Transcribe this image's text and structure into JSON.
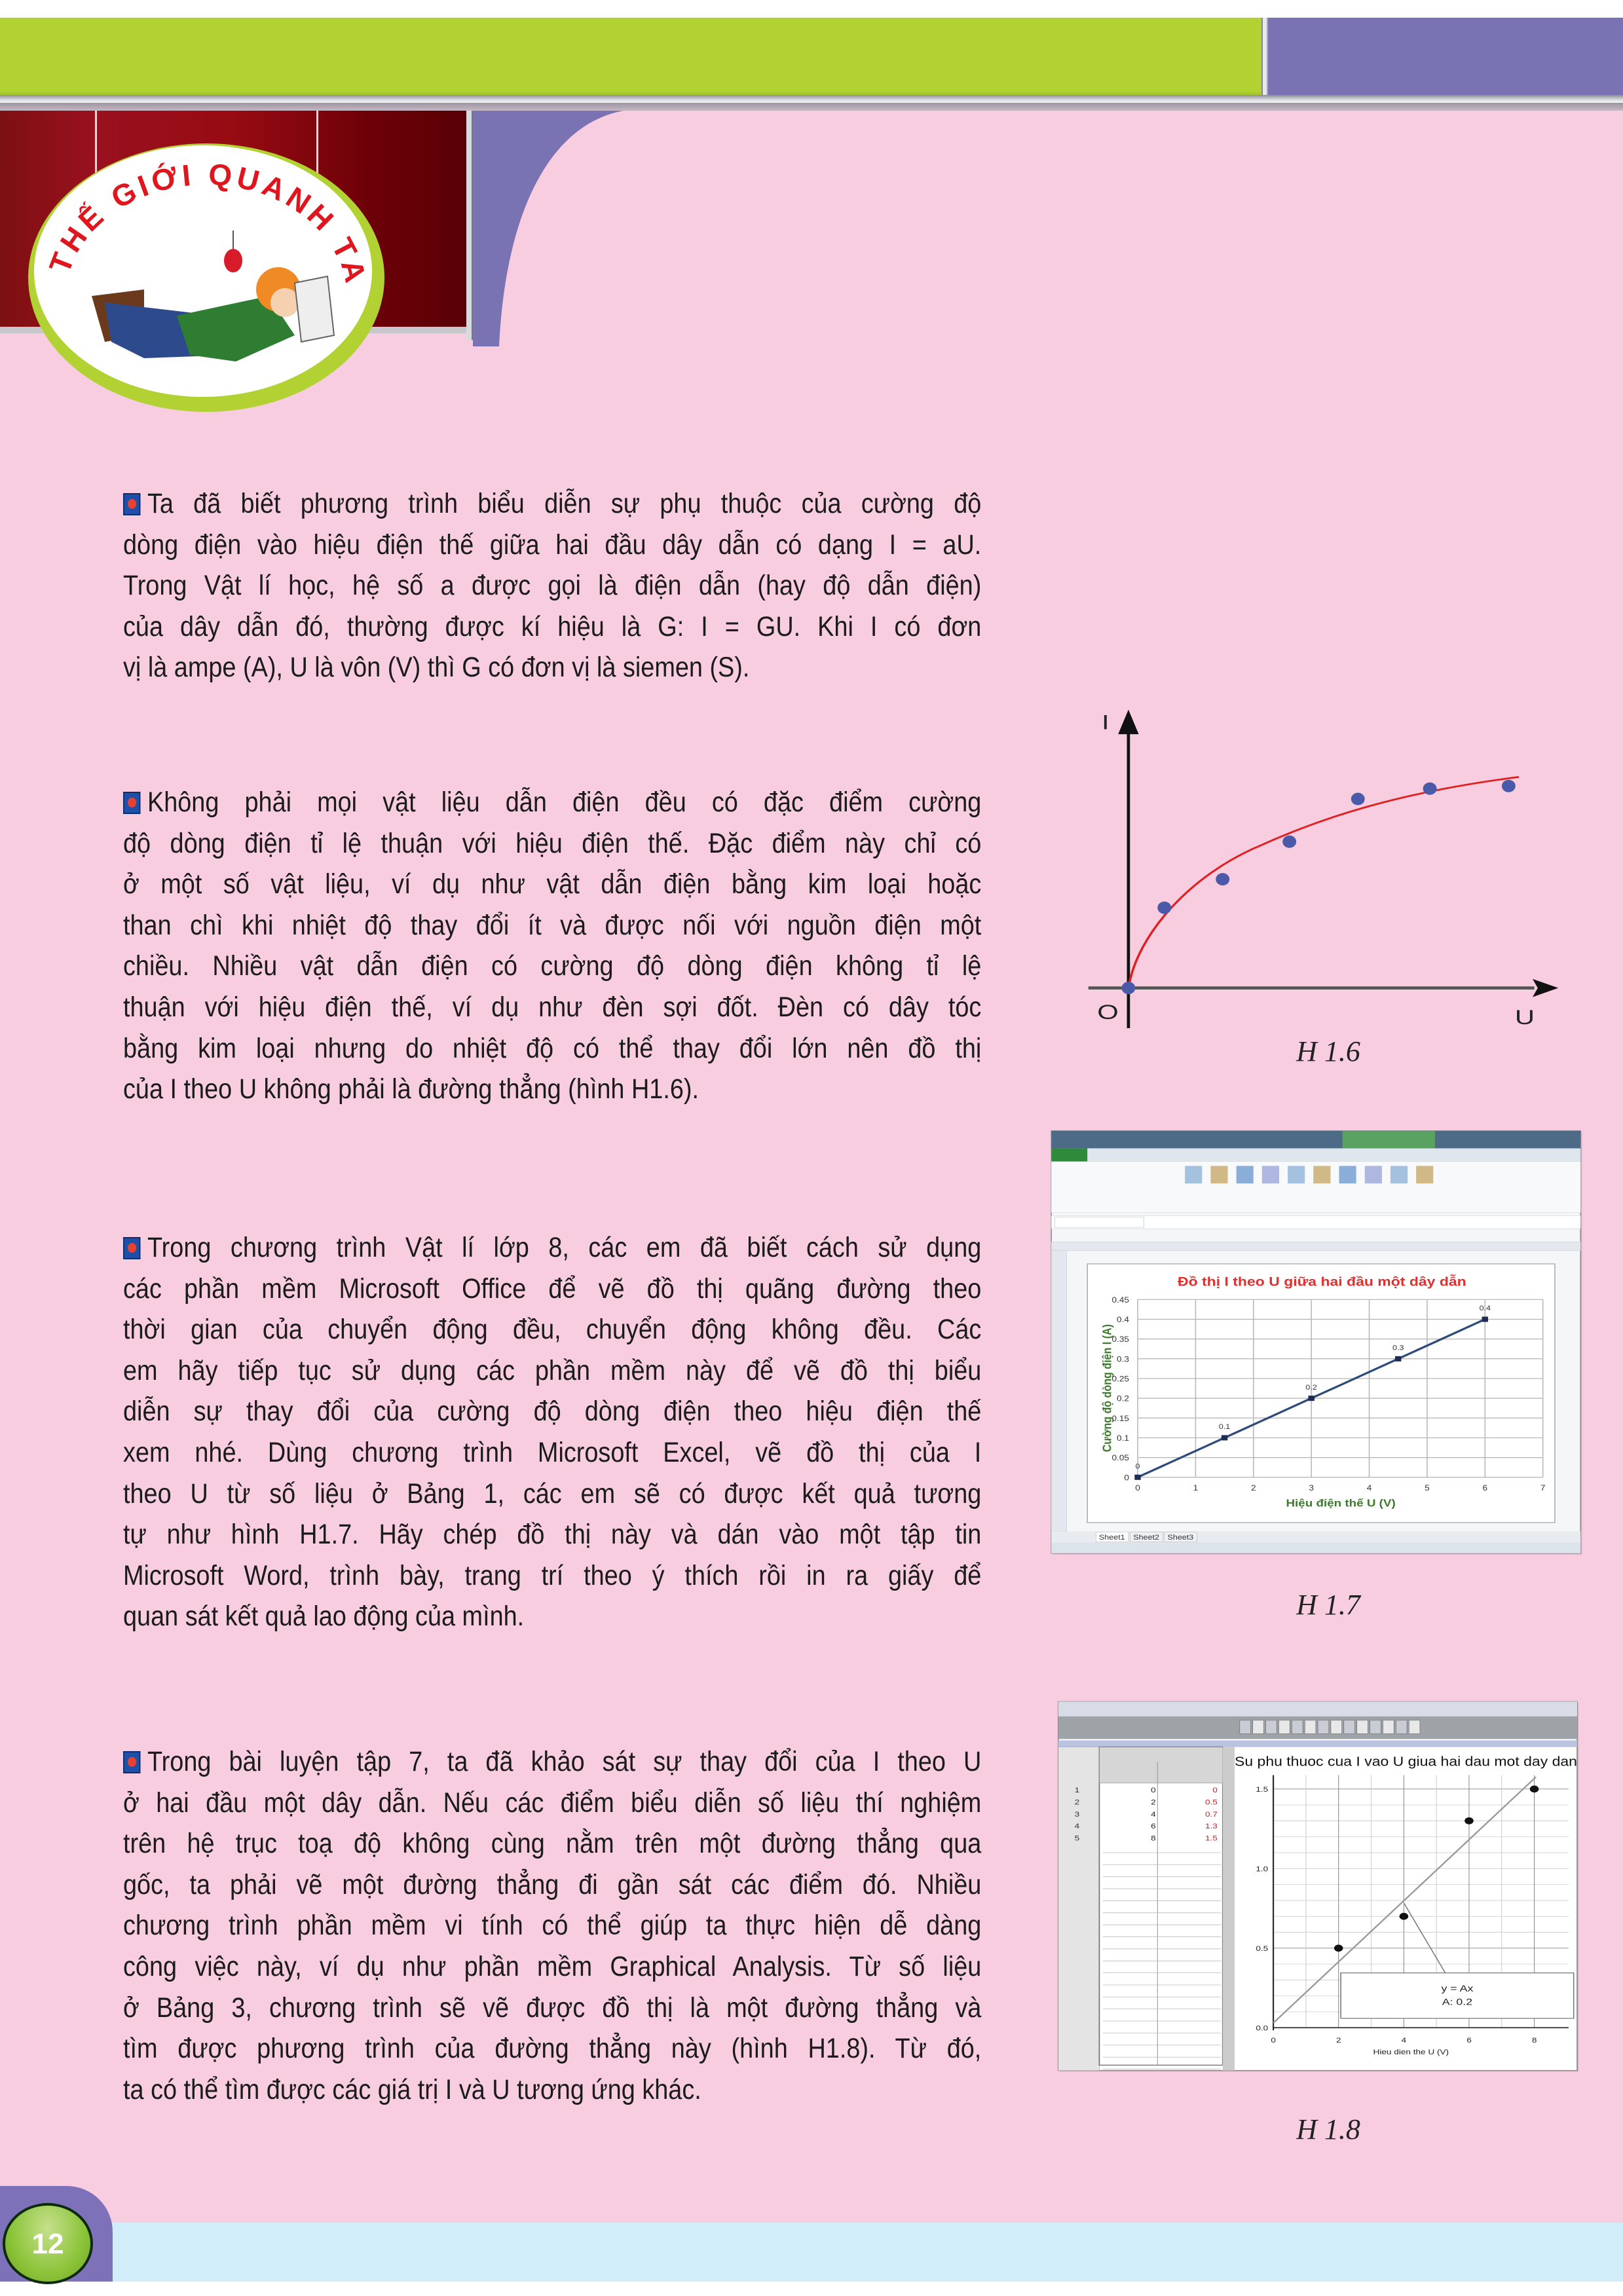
{
  "header": {
    "logo_text": "THẾ GIỚI QUANH TA"
  },
  "paragraphs": [
    {
      "lines": [
        "Ta đã biết phương trình biểu diễn sự phụ thuộc của cường độ",
        "dòng điện vào hiệu điện thế giữa hai đầu dây dẫn có dạng I = aU.",
        "Trong Vật lí học, hệ số a được gọi là điện dẫn (hay độ dẫn điện)",
        "của dây dẫn đó, thường được kí hiệu là G: I = GU. Khi I có đơn",
        "vị là ampe (A), U là vôn (V) thì G có đơn vị là siemen (S)."
      ]
    },
    {
      "lines": [
        "Không phải mọi vật liệu dẫn điện đều có đặc điểm cường",
        "độ dòng điện tỉ lệ thuận với hiệu điện thế. Đặc điểm này chỉ có",
        "ở một số vật liệu, ví dụ như vật dẫn điện bằng kim loại hoặc",
        "than chì khi nhiệt độ thay đổi ít và được nối với nguồn điện một",
        "chiều. Nhiều vật dẫn điện có cường độ dòng điện không tỉ lệ",
        "thuận với hiệu điện thế, ví dụ như đèn sợi đốt. Đèn có dây tóc",
        "bằng kim loại nhưng do nhiệt độ có thể thay đổi lớn nên đồ thị",
        "của I theo U không phải là đường thẳng (hình H1.6)."
      ]
    },
    {
      "lines": [
        "Trong chương trình Vật lí lớp 8, các em đã biết cách sử dụng",
        "các phần mềm Microsoft Office để vẽ đồ thị quãng đường theo",
        "thời gian của chuyển động đều, chuyển động không đều. Các",
        "em hãy tiếp tục sử dụng các phần mềm này để vẽ đồ thị biểu",
        "diễn sự thay đổi của cường độ dòng điện theo hiệu điện thế",
        "xem nhé. Dùng chương trình Microsoft Excel, vẽ đồ thị của I",
        "theo U từ số liệu ở Bảng 1, các em sẽ có được kết quả tương",
        "tự như hình H1.7. Hãy chép đồ thị này và dán vào một tập tin",
        "Microsoft Word, trình bày, trang trí theo ý thích rồi in ra giấy để",
        "quan sát kết quả lao động của mình."
      ]
    },
    {
      "lines": [
        "Trong bài luyện tập 7, ta đã khảo sát sự thay đổi của I theo U",
        "ở hai đầu một dây dẫn. Nếu các điểm biểu diễn số liệu thí nghiệm",
        "trên hệ trục toạ độ không cùng nằm trên một đường thẳng qua",
        "gốc, ta phải vẽ một đường thẳng đi gần sát các điểm đó. Nhiều",
        "chương trình phần mềm vi tính có thể giúp ta thực hiện dễ dàng",
        "công việc này, ví dụ như phần mềm Graphical Analysis. Từ số liệu",
        "ở Bảng 3, chương trình sẽ vẽ được đồ thị là một đường thẳng và",
        "tìm được phương trình của đường thẳng này (hình H1.8). Từ đó,",
        "ta có thể tìm được các giá trị I và U tương ứng khác."
      ]
    }
  ],
  "figures": {
    "h16": {
      "caption": "H 1.6",
      "y_axis_label": "I",
      "x_axis_label": "U",
      "origin_label": "O"
    },
    "h17": {
      "caption": "H 1.7",
      "sheet_tabs": [
        "Sheet1",
        "Sheet2",
        "Sheet3"
      ]
    },
    "h18": {
      "caption": "H 1.8",
      "fit_box": [
        "y = Ax",
        "A: 0.2"
      ]
    }
  },
  "chart_data": [
    {
      "type": "scatter",
      "title": "",
      "xlabel": "U",
      "ylabel": "I",
      "series": [
        {
          "points": "7 measured points on a concave curve through origin",
          "trend": "curve (red)"
        }
      ],
      "colors": {
        "points": "#4a5aa8",
        "curve": "#e02020"
      }
    },
    {
      "type": "line",
      "title": "Đồ thị I theo U giữa hai đầu một dây dẫn",
      "xlabel": "Hiệu điện thế U (V)",
      "ylabel": "Cường độ dòng điện I (A)",
      "x": [
        0,
        1.5,
        3,
        4.5,
        6
      ],
      "values": [
        0,
        0.1,
        0.2,
        0.3,
        0.4
      ],
      "data_labels": [
        "0",
        "0.1",
        "0.2",
        "0.3",
        "0.4"
      ],
      "xlim": [
        0,
        7
      ],
      "ylim": [
        0,
        0.45
      ],
      "x_ticks": [
        "0",
        "1",
        "2",
        "3",
        "4",
        "5",
        "6",
        "7"
      ],
      "y_ticks": [
        "0",
        "0.05",
        "0.1",
        "0.15",
        "0.2",
        "0.25",
        "0.3",
        "0.35",
        "0.4",
        "0.45"
      ],
      "grid": true,
      "colors": {
        "title": "#e03030",
        "axis_labels": "#3c7a2c",
        "line": "#2c4a7a"
      }
    },
    {
      "type": "scatter",
      "title": "Su phu thuoc cua I vao U giua hai dau mot day dan",
      "xlabel": "Hieu dien the U (V)",
      "x": [
        0,
        2,
        4,
        6,
        8
      ],
      "values": [
        0.0,
        0.5,
        0.7,
        1.3,
        1.5
      ],
      "fit": {
        "slope": 0.2
      },
      "xlim": [
        0,
        8
      ],
      "ylim": [
        0,
        1.5
      ],
      "x_ticks": [
        "0",
        "2",
        "4",
        "6",
        "8"
      ],
      "y_ticks": [
        "0.0",
        "0.5",
        "1.0",
        "1.5"
      ],
      "grid": true
    }
  ],
  "page": {
    "number": "12"
  }
}
